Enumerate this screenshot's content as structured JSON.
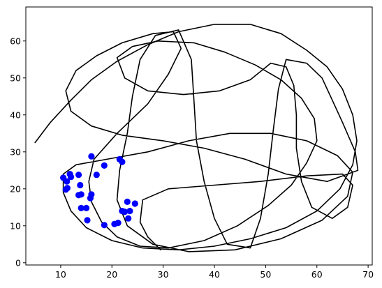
{
  "chart_data": {
    "type": "scatter",
    "title": "",
    "xlabel": "",
    "ylabel": "",
    "xlim": [
      3.2,
      70.8
    ],
    "ylim": [
      -0.6,
      69.2
    ],
    "x_ticks": [
      "10",
      "20",
      "30",
      "40",
      "50",
      "60",
      "70"
    ],
    "y_ticks": [
      "0",
      "10",
      "20",
      "30",
      "40",
      "50",
      "60"
    ],
    "grid": false,
    "legend": "none",
    "trajectory_color": "#000000",
    "point_color": "#0000ff",
    "trajectory": [
      [
        5.0,
        32.5
      ],
      [
        8.0,
        38.0
      ],
      [
        12.0,
        44.0
      ],
      [
        16.0,
        49.5
      ],
      [
        21.0,
        54.5
      ],
      [
        27.0,
        59.0
      ],
      [
        33.0,
        62.5
      ],
      [
        40.0,
        64.5
      ],
      [
        47.0,
        64.5
      ],
      [
        53.0,
        62.0
      ],
      [
        58.0,
        57.5
      ],
      [
        62.0,
        53.0
      ],
      [
        65.0,
        47.0
      ],
      [
        67.0,
        40.0
      ],
      [
        67.8,
        33.0
      ],
      [
        67.0,
        26.5
      ],
      [
        64.5,
        20.0
      ],
      [
        60.0,
        14.0
      ],
      [
        54.0,
        9.5
      ],
      [
        47.0,
        6.5
      ],
      [
        40.0,
        4.5
      ],
      [
        33.0,
        3.5
      ],
      [
        26.0,
        4.0
      ],
      [
        20.0,
        6.0
      ],
      [
        15.0,
        9.5
      ],
      [
        12.0,
        14.0
      ],
      [
        10.5,
        19.0
      ],
      [
        10.5,
        24.0
      ],
      [
        13.0,
        26.5
      ],
      [
        19.0,
        28.0
      ],
      [
        27.0,
        30.0
      ],
      [
        35.0,
        33.0
      ],
      [
        43.0,
        35.0
      ],
      [
        51.0,
        35.0
      ],
      [
        58.0,
        33.0
      ],
      [
        64.0,
        29.0
      ],
      [
        67.0,
        24.5
      ],
      [
        66.0,
        18.0
      ],
      [
        61.0,
        11.5
      ],
      [
        53.0,
        6.5
      ],
      [
        44.0,
        3.5
      ],
      [
        35.0,
        3.0
      ],
      [
        28.0,
        5.0
      ],
      [
        23.0,
        10.0
      ],
      [
        21.0,
        17.0
      ],
      [
        21.5,
        25.0
      ],
      [
        23.0,
        35.0
      ],
      [
        24.0,
        45.0
      ],
      [
        25.5,
        55.0
      ],
      [
        28.5,
        61.5
      ],
      [
        33.0,
        63.0
      ],
      [
        35.5,
        55.0
      ],
      [
        36.0,
        44.0
      ],
      [
        36.5,
        33.0
      ],
      [
        38.0,
        22.0
      ],
      [
        40.0,
        12.0
      ],
      [
        42.5,
        5.0
      ],
      [
        47.0,
        4.0
      ],
      [
        49.0,
        12.0
      ],
      [
        50.5,
        24.0
      ],
      [
        51.5,
        36.0
      ],
      [
        52.5,
        47.0
      ],
      [
        54.0,
        55.0
      ],
      [
        58.0,
        54.0
      ],
      [
        61.0,
        50.0
      ],
      [
        63.0,
        44.0
      ],
      [
        65.0,
        38.0
      ],
      [
        67.5,
        30.0
      ],
      [
        68.0,
        25.0
      ],
      [
        62.0,
        22.0
      ],
      [
        54.0,
        24.0
      ],
      [
        46.0,
        28.0
      ],
      [
        38.0,
        31.0
      ],
      [
        30.0,
        33.0
      ],
      [
        22.0,
        34.5
      ],
      [
        16.0,
        37.0
      ],
      [
        12.0,
        41.0
      ],
      [
        11.0,
        46.5
      ],
      [
        13.0,
        52.0
      ],
      [
        17.0,
        56.0
      ],
      [
        22.0,
        59.5
      ],
      [
        28.0,
        62.0
      ],
      [
        32.0,
        62.5
      ],
      [
        33.5,
        58.0
      ],
      [
        31.0,
        51.0
      ],
      [
        27.0,
        43.0
      ],
      [
        21.0,
        35.0
      ],
      [
        16.5,
        28.0
      ],
      [
        15.5,
        22.0
      ],
      [
        16.0,
        16.5
      ],
      [
        18.0,
        11.0
      ],
      [
        21.0,
        7.0
      ],
      [
        25.5,
        4.5
      ],
      [
        31.0,
        4.0
      ],
      [
        38.0,
        6.0
      ],
      [
        44.5,
        10.0
      ],
      [
        50.5,
        15.5
      ],
      [
        55.0,
        21.0
      ],
      [
        58.0,
        27.0
      ],
      [
        60.0,
        33.0
      ],
      [
        59.5,
        39.0
      ],
      [
        57.0,
        44.5
      ],
      [
        53.0,
        49.5
      ],
      [
        48.0,
        53.5
      ],
      [
        42.0,
        57.0
      ],
      [
        36.0,
        59.5
      ],
      [
        29.0,
        60.0
      ],
      [
        24.0,
        58.5
      ],
      [
        21.0,
        55.5
      ],
      [
        22.5,
        50.0
      ],
      [
        27.0,
        46.5
      ],
      [
        34.0,
        45.5
      ],
      [
        41.0,
        46.5
      ],
      [
        47.0,
        49.5
      ],
      [
        51.0,
        54.0
      ],
      [
        54.0,
        53.0
      ],
      [
        55.5,
        48.0
      ],
      [
        56.0,
        40.0
      ],
      [
        56.0,
        31.0
      ],
      [
        57.0,
        22.0
      ],
      [
        59.0,
        15.0
      ],
      [
        63.0,
        12.0
      ],
      [
        66.0,
        15.0
      ],
      [
        67.0,
        21.0
      ],
      [
        65.0,
        24.0
      ],
      [
        58.0,
        23.5
      ],
      [
        49.0,
        22.0
      ],
      [
        40.0,
        21.0
      ],
      [
        31.0,
        20.0
      ],
      [
        26.0,
        17.0
      ],
      [
        25.5,
        11.0
      ],
      [
        27.0,
        7.0
      ],
      [
        29.5,
        3.5
      ]
    ],
    "points": [
      [
        16.0,
        28.8
      ],
      [
        18.5,
        26.3
      ],
      [
        21.5,
        28.0
      ],
      [
        22.0,
        27.3
      ],
      [
        10.5,
        23.0
      ],
      [
        11.2,
        22.0
      ],
      [
        11.8,
        24.0
      ],
      [
        12.0,
        23.2
      ],
      [
        11.3,
        20.2
      ],
      [
        11.0,
        19.8
      ],
      [
        13.5,
        23.8
      ],
      [
        13.8,
        21.0
      ],
      [
        14.0,
        18.5
      ],
      [
        13.5,
        18.3
      ],
      [
        15.8,
        17.5
      ],
      [
        16.0,
        18.5
      ],
      [
        17.0,
        23.8
      ],
      [
        14.0,
        14.8
      ],
      [
        15.0,
        14.8
      ],
      [
        15.2,
        11.5
      ],
      [
        18.5,
        10.2
      ],
      [
        20.5,
        10.5
      ],
      [
        21.2,
        10.8
      ],
      [
        22.0,
        14.0
      ],
      [
        22.5,
        13.8
      ],
      [
        23.0,
        16.5
      ],
      [
        23.5,
        14.0
      ],
      [
        23.2,
        12.0
      ],
      [
        24.5,
        16.0
      ]
    ]
  }
}
